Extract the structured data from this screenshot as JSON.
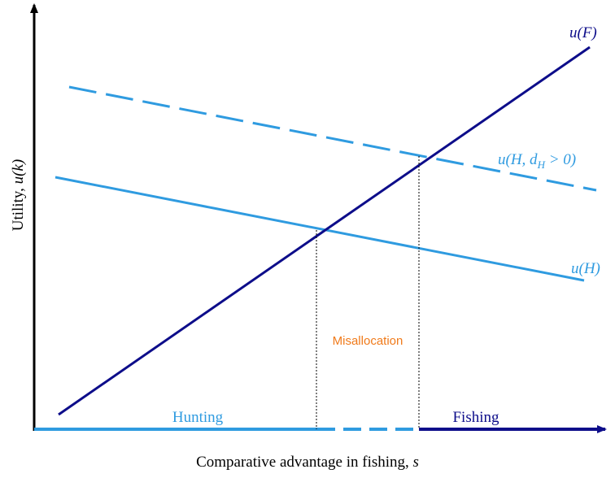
{
  "axes": {
    "y_label": {
      "text": "Utility, ",
      "symbol": "u(k)"
    },
    "x_label": {
      "text": "Comparative advantage in fishing, ",
      "symbol": "s"
    }
  },
  "curves": {
    "u_F": "u(F)",
    "u_H_d": {
      "main": "u(H, d",
      "sub": "H",
      "rest": " > 0)"
    },
    "u_H": "u(H)"
  },
  "regions": {
    "hunting": "Hunting",
    "fishing": "Fishing",
    "misallocation": "Misallocation"
  }
}
